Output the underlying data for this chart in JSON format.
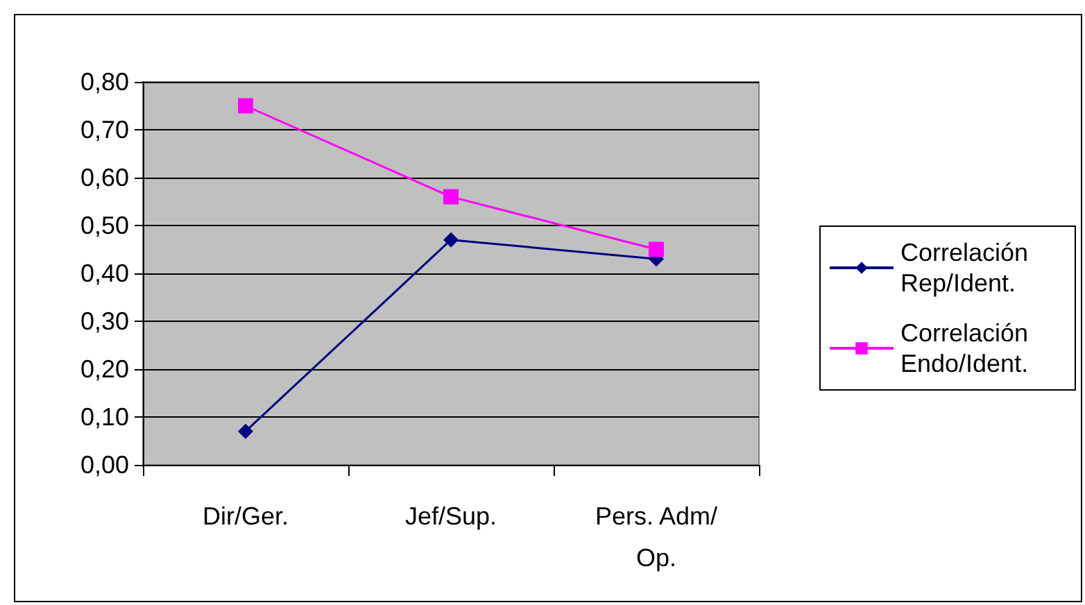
{
  "chart_data": {
    "type": "line",
    "categories": [
      "Dir/Ger.",
      "Jef/Sup.",
      "Pers. Adm/Op."
    ],
    "series": [
      {
        "name": "Correlación Rep/Ident.",
        "color": "#000080",
        "marker": "diamond",
        "values": [
          0.07,
          0.47,
          0.43
        ]
      },
      {
        "name": "Correlación Endo/Ident.",
        "color": "#ff00ff",
        "marker": "square",
        "values": [
          0.75,
          0.56,
          0.45
        ]
      }
    ],
    "ylim": [
      0,
      0.8
    ],
    "yticks": [
      {
        "value": 0,
        "label": "0,00"
      },
      {
        "value": 0.1,
        "label": "0,10"
      },
      {
        "value": 0.2,
        "label": "0,20"
      },
      {
        "value": 0.3,
        "label": "0,30"
      },
      {
        "value": 0.4,
        "label": "0,40"
      },
      {
        "value": 0.5,
        "label": "0,50"
      },
      {
        "value": 0.6,
        "label": "0,60"
      },
      {
        "value": 0.7,
        "label": "0,70"
      },
      {
        "value": 0.8,
        "label": "0,80"
      }
    ],
    "grid": "y",
    "legend": "right",
    "line_style": "solid"
  }
}
